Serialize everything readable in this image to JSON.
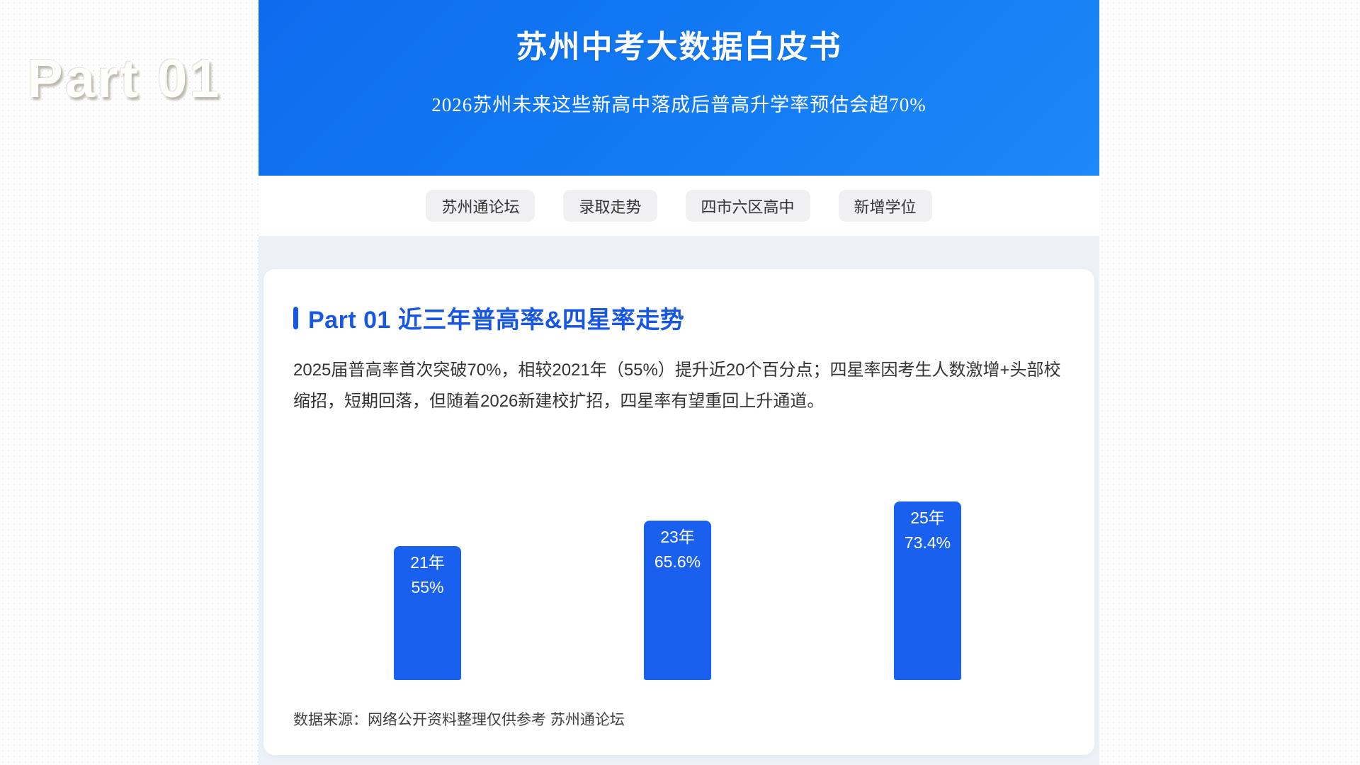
{
  "watermark": "Part 01",
  "header": {
    "title": "苏州中考大数据白皮书",
    "subtitle": "2026苏州未来这些新高中落成后普高升学率预估会超70%"
  },
  "tabs": [
    {
      "label": "苏州通论坛"
    },
    {
      "label": "录取走势"
    },
    {
      "label": "四市六区高中"
    },
    {
      "label": "新增学位"
    }
  ],
  "section": {
    "title": "Part 01 近三年普高率&四星率走势",
    "body": "2025届普高率首次突破70%，相较2021年（55%）提升近20个百分点；四星率因考生人数激增+头部校缩招，短期回落，但随着2026新建校扩招，四星率有望重回上升通道。",
    "source": "数据来源：网络公开资料整理仅供参考 苏州通论坛"
  },
  "chart_data": {
    "type": "bar",
    "title": "Part 01 近三年普高率&四星率走势",
    "categories": [
      "21年",
      "23年",
      "25年"
    ],
    "values": [
      55,
      65.6,
      73.4
    ],
    "value_labels": [
      "55%",
      "65.6%",
      "73.4%"
    ],
    "xlabel": "",
    "ylabel": "",
    "ylim": [
      0,
      80
    ],
    "grid": false,
    "legend": false,
    "bar_color": "#1a60ef",
    "label_position": "inside-top"
  },
  "colors": {
    "banner_gradient_start": "#0d6cee",
    "banner_gradient_end": "#1d88f8",
    "accent_blue": "#1757e2",
    "bar_blue": "#1a60ef",
    "column_background": "#edf2f8",
    "pill_background": "#f0f0f3"
  }
}
